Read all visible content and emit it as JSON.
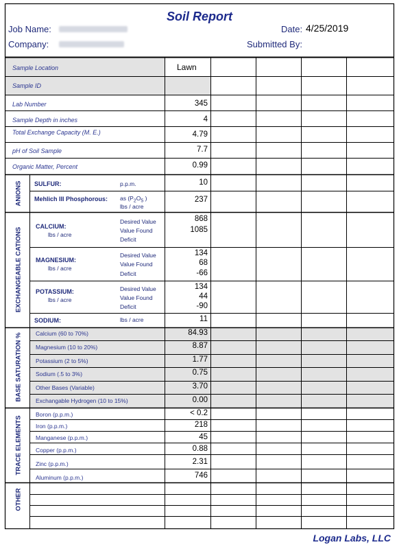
{
  "title": "Soil Report",
  "header": {
    "job_label": "Job Name:",
    "company_label": "Company:",
    "date_label": "Date:",
    "date_value": "4/25/2019",
    "submitted_label": "Submitted By:"
  },
  "sample_info": {
    "location_label": "Sample Location",
    "location_value": "Lawn",
    "id_label": "Sample ID",
    "lab_label": "Lab Number",
    "lab_value": "345",
    "depth_label": "Sample Depth in inches",
    "depth_value": "4",
    "tec_label": "Total Exchange Capacity (M. E.)",
    "tec_value": "4.79",
    "ph_label": "pH of Soil Sample",
    "ph_value": "7.7",
    "om_label": "Organic Matter, Percent",
    "om_value": "0.99"
  },
  "anions": {
    "section": "ANIONS",
    "sulfur_label": "SULFUR:",
    "sulfur_unit": "p.p.m.",
    "sulfur_value": "10",
    "phos_label": "Mehlich III Phosphorous:",
    "phos_unit1": "as (P",
    "phos_sub1": "2",
    "phos_o": "O",
    "phos_sub2": "5",
    "phos_close": ")",
    "phos_unit2": "lbs / acre",
    "phos_value": "237"
  },
  "cations": {
    "section": "EXCHANGEABLE CATIONS",
    "desired": "Desired Value",
    "found": "Value Found",
    "deficit": "Deficit",
    "unit": "lbs / acre",
    "calcium_label": "CALCIUM:",
    "calcium": [
      "868",
      "1085",
      ""
    ],
    "magnesium_label": "MAGNESIUM:",
    "magnesium": [
      "134",
      "68",
      "-66"
    ],
    "potassium_label": "POTASSIUM:",
    "potassium": [
      "134",
      "44",
      "-90"
    ],
    "sodium_label": "SODIUM:",
    "sodium_unit": "lbs / acre",
    "sodium_value": "11"
  },
  "base_saturation": {
    "section": "BASE SATURATION %",
    "rows": [
      {
        "label": "Calcium (60 to 70%)",
        "value": "84.93"
      },
      {
        "label": "Magnesium (10 to 20%)",
        "value": "8.87"
      },
      {
        "label": "Potassium (2 to 5%)",
        "value": "1.77"
      },
      {
        "label": "Sodium (.5 to 3%)",
        "value": "0.75"
      },
      {
        "label": "Other Bases (Variable)",
        "value": "3.70"
      },
      {
        "label": "Exchangable Hydrogen (10 to 15%)",
        "value": "0.00"
      }
    ]
  },
  "trace": {
    "section": "TRACE ELEMENTS",
    "rows": [
      {
        "label": "Boron (p.p.m.)",
        "value": "< 0.2"
      },
      {
        "label": "Iron (p.p.m.)",
        "value": "218"
      },
      {
        "label": "Manganese (p.p.m.)",
        "value": "45"
      },
      {
        "label": "Copper (p.p.m.)",
        "value": "0.88"
      },
      {
        "label": "Zinc (p.p.m.)",
        "value": "2.31"
      },
      {
        "label": "Aluminum (p.p.m.)",
        "value": "746"
      }
    ]
  },
  "other": {
    "section": "OTHER"
  },
  "footer": "Logan Labs, LLC"
}
